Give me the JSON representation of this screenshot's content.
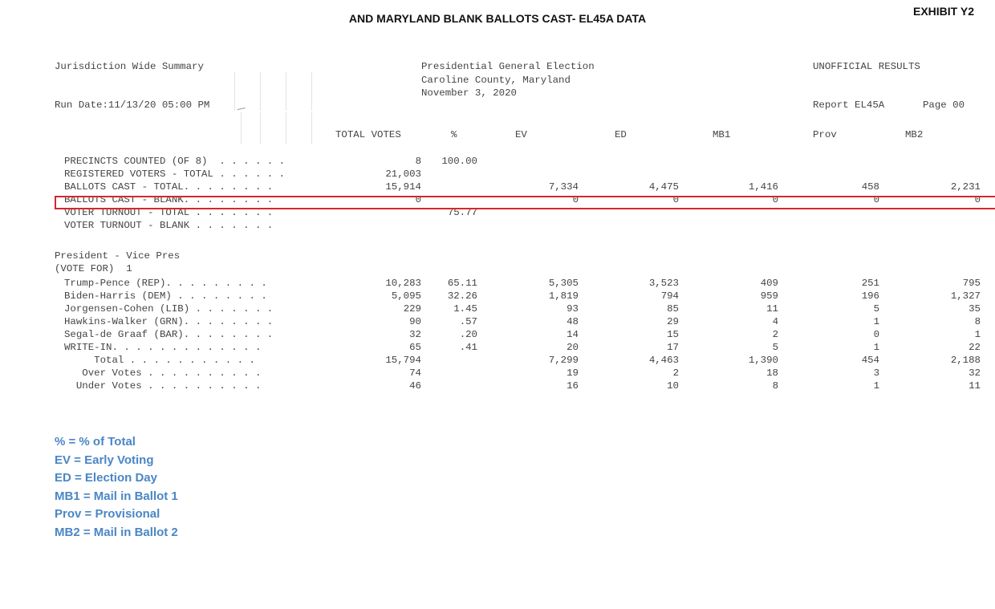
{
  "header": {
    "title": "AND MARYLAND BLANK BALLOTS CAST- EL45A DATA",
    "exhibit": "EXHIBIT Y2"
  },
  "report": {
    "summary_label": "Jurisdiction Wide Summary",
    "election_lines": [
      "Presidential General Election",
      "Caroline County, Maryland",
      "November 3, 2020"
    ],
    "status": "UNOFFICIAL RESULTS",
    "run_date": "Run Date:11/13/20 05:00 PM",
    "report_id": "Report EL45A",
    "page": "Page 00",
    "columns": [
      "TOTAL VOTES",
      "%",
      "EV",
      "ED",
      "MB1",
      "Prov",
      "MB2"
    ],
    "stats": [
      {
        "label": "PRECINCTS COUNTED (OF 8)  . . . . . .",
        "total": "8",
        "pct": "100.00",
        "ev": "",
        "ed": "",
        "mb1": "",
        "prov": "",
        "mb2": ""
      },
      {
        "label": "REGISTERED VOTERS - TOTAL . . . . . .",
        "total": "21,003",
        "pct": "",
        "ev": "",
        "ed": "",
        "mb1": "",
        "prov": "",
        "mb2": ""
      },
      {
        "label": "BALLOTS CAST - TOTAL. . . . . . . .",
        "total": "15,914",
        "pct": "",
        "ev": "7,334",
        "ed": "4,475",
        "mb1": "1,416",
        "prov": "458",
        "mb2": "2,231"
      },
      {
        "label": "BALLOTS CAST - BLANK. . . . . . . .",
        "total": "0",
        "pct": "",
        "ev": "0",
        "ed": "0",
        "mb1": "0",
        "prov": "0",
        "mb2": "0"
      },
      {
        "label": "VOTER TURNOUT - TOTAL . . . . . . .",
        "total": "",
        "pct": "75.77",
        "ev": "",
        "ed": "",
        "mb1": "",
        "prov": "",
        "mb2": ""
      },
      {
        "label": "VOTER TURNOUT - BLANK . . . . . . .",
        "total": "",
        "pct": "",
        "ev": "",
        "ed": "",
        "mb1": "",
        "prov": "",
        "mb2": ""
      }
    ],
    "race_title": "President - Vice Pres",
    "race_vote_for": "(VOTE FOR)  1",
    "candidates": [
      {
        "label": "Trump-Pence (REP). . . . . . . . .",
        "total": "10,283",
        "pct": "65.11",
        "ev": "5,305",
        "ed": "3,523",
        "mb1": "409",
        "prov": "251",
        "mb2": "795"
      },
      {
        "label": "Biden-Harris (DEM) . . . . . . . .",
        "total": "5,095",
        "pct": "32.26",
        "ev": "1,819",
        "ed": "794",
        "mb1": "959",
        "prov": "196",
        "mb2": "1,327"
      },
      {
        "label": "Jorgensen-Cohen (LIB) . . . . . . .",
        "total": "229",
        "pct": "1.45",
        "ev": "93",
        "ed": "85",
        "mb1": "11",
        "prov": "5",
        "mb2": "35"
      },
      {
        "label": "Hawkins-Walker (GRN). . . . . . . .",
        "total": "90",
        "pct": ".57",
        "ev": "48",
        "ed": "29",
        "mb1": "4",
        "prov": "1",
        "mb2": "8"
      },
      {
        "label": "Segal-de Graaf (BAR). . . . . . . .",
        "total": "32",
        "pct": ".20",
        "ev": "14",
        "ed": "15",
        "mb1": "2",
        "prov": "0",
        "mb2": "1"
      },
      {
        "label": "WRITE-IN. . . . . . . . . . . . .",
        "total": "65",
        "pct": ".41",
        "ev": "20",
        "ed": "17",
        "mb1": "5",
        "prov": "1",
        "mb2": "22"
      },
      {
        "label": "     Total . . . . . . . . . . .",
        "total": "15,794",
        "pct": "",
        "ev": "7,299",
        "ed": "4,463",
        "mb1": "1,390",
        "prov": "454",
        "mb2": "2,188"
      },
      {
        "label": "   Over Votes . . . . . . . . . .",
        "total": "74",
        "pct": "",
        "ev": "19",
        "ed": "2",
        "mb1": "18",
        "prov": "3",
        "mb2": "32"
      },
      {
        "label": "  Under Votes . . . . . . . . . .",
        "total": "46",
        "pct": "",
        "ev": "16",
        "ed": "10",
        "mb1": "8",
        "prov": "1",
        "mb2": "11"
      }
    ]
  },
  "legend": [
    "% = % of Total",
    "EV = Early Voting",
    "ED = Election Day",
    "MB1 = Mail in Ballot 1",
    "Prov = Provisional",
    "MB2 = Mail in Ballot 2"
  ]
}
